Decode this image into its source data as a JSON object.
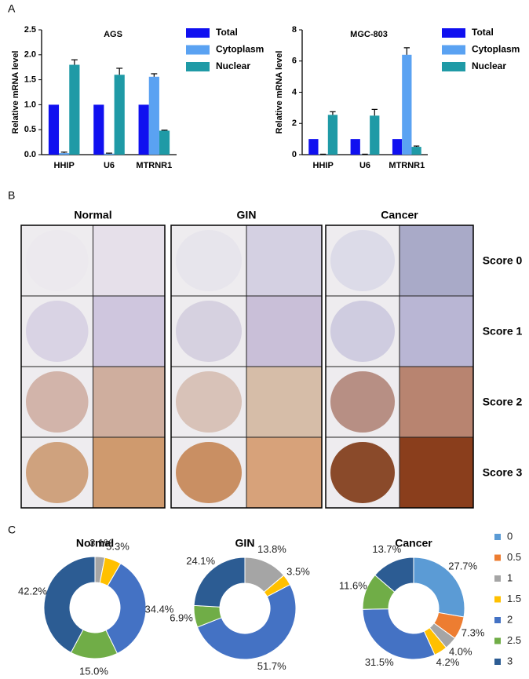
{
  "panel_labels": [
    "A",
    "B",
    "C"
  ],
  "ihc": {
    "columns": [
      "Normal",
      "GIN",
      "Cancer"
    ],
    "rows": [
      "Score 0",
      "Score 1",
      "Score 2",
      "Score 3"
    ]
  },
  "chart_data": [
    {
      "type": "bar",
      "title": "AGS",
      "ylabel": "Relative mRNA level",
      "categories": [
        "HHIP",
        "U6",
        "MTRNR1"
      ],
      "series": [
        {
          "name": "Total",
          "color": "#1010f0",
          "values": [
            1,
            1,
            1
          ]
        },
        {
          "name": "Cytoplasm",
          "color": "#5aa2f2",
          "values": [
            0.03,
            0.02,
            1.56
          ],
          "errors": [
            0.02,
            0.01,
            0.06
          ]
        },
        {
          "name": "Nuclear",
          "color": "#1f9aa6",
          "values": [
            1.8,
            1.6,
            0.48
          ],
          "errors": [
            0.1,
            0.13,
            0.01
          ]
        }
      ],
      "ylim": [
        0,
        2.5
      ],
      "yticks": [
        {
          "value": 0,
          "label": "0.0"
        },
        0.5,
        {
          "value": 1,
          "label": "1.0"
        },
        1.5,
        {
          "value": 2,
          "label": "2.0"
        },
        2.5
      ]
    },
    {
      "type": "bar",
      "title": "MGC-803",
      "ylabel": "Relative mRNA level",
      "categories": [
        "HHIP",
        "U6",
        "MTRNR1"
      ],
      "series": [
        {
          "name": "Total",
          "color": "#1010f0",
          "values": [
            1,
            1,
            1
          ]
        },
        {
          "name": "Cytoplasm",
          "color": "#5aa2f2",
          "values": [
            0.02,
            0.02,
            6.4
          ],
          "errors": [
            0.01,
            0.01,
            0.45
          ]
        },
        {
          "name": "Nuclear",
          "color": "#1f9aa6",
          "values": [
            2.55,
            2.5,
            0.5
          ],
          "errors": [
            0.2,
            0.4,
            0.05
          ]
        }
      ],
      "ylim": [
        0,
        8
      ],
      "yticks": [
        0,
        2,
        4,
        6,
        8
      ]
    },
    {
      "type": "pie",
      "title": "Normal",
      "values": [
        3.1,
        5.3,
        34.4,
        15.0,
        42.2
      ],
      "value_labels": [
        "3.1%",
        "5.3%",
        "34.4%",
        "15.0%",
        "42.2%"
      ],
      "colors": [
        "#a5a5a5",
        "#ffc000",
        "#4472c4",
        "#70ad47",
        "#2c5c93"
      ]
    },
    {
      "type": "pie",
      "title": "GIN",
      "values": [
        13.8,
        3.5,
        51.7,
        6.9,
        24.1
      ],
      "value_labels": [
        "13.8%",
        "3.5%",
        "51.7%",
        "6.9%",
        "24.1%"
      ],
      "colors": [
        "#a5a5a5",
        "#ffc000",
        "#4472c4",
        "#70ad47",
        "#2c5c93"
      ]
    },
    {
      "type": "pie",
      "title": "Cancer",
      "values": [
        27.7,
        7.3,
        4.0,
        4.2,
        31.5,
        11.6,
        13.7
      ],
      "value_labels": [
        "27.7%",
        "7.3%",
        "4.0%",
        "4.2%",
        "31.5%",
        "11.6%",
        "13.7%"
      ],
      "colors": [
        "#5b9bd5",
        "#ed7d31",
        "#a5a5a5",
        "#ffc000",
        "#4472c4",
        "#70ad47",
        "#2c5c93"
      ]
    },
    {
      "type": "legend",
      "categories": [
        "0",
        "0.5",
        "1",
        "1.5",
        "2",
        "2.5",
        "3"
      ],
      "colors": [
        "#5b9bd5",
        "#ed7d31",
        "#a5a5a5",
        "#ffc000",
        "#4472c4",
        "#70ad47",
        "#2c5c93"
      ]
    }
  ]
}
